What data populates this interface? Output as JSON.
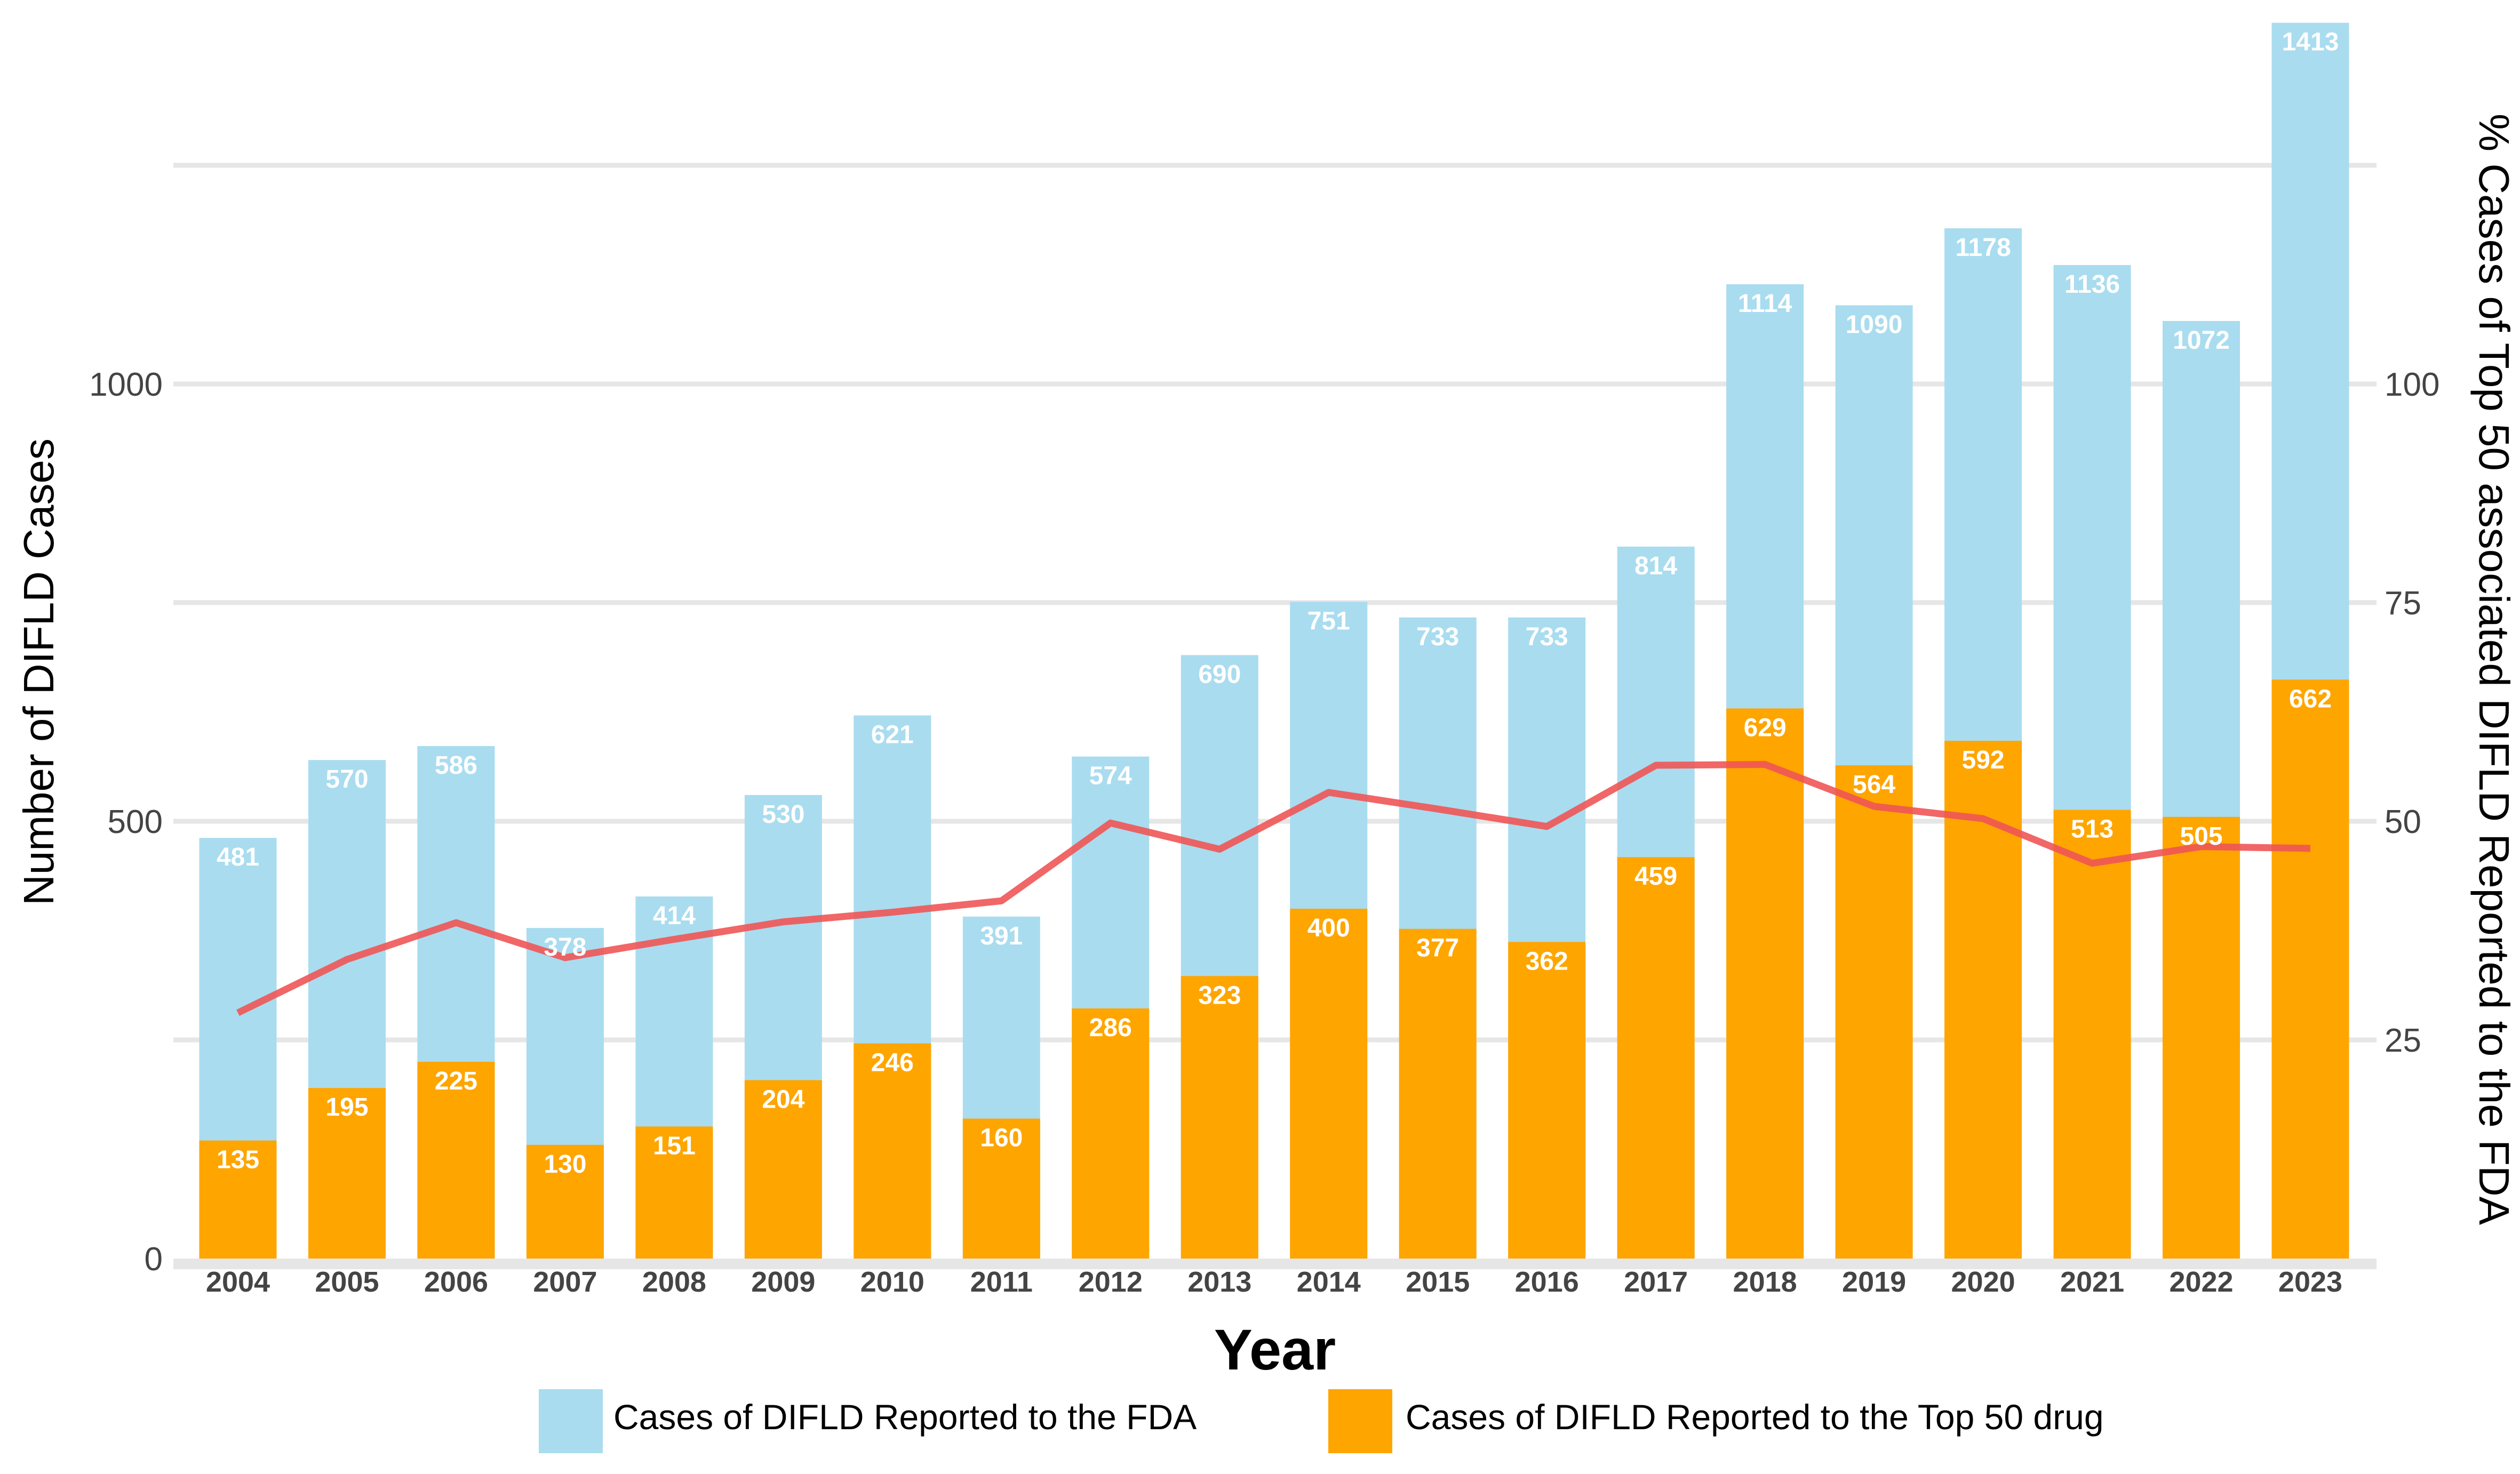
{
  "chart_data": {
    "type": "bar",
    "stacking": "overlay",
    "categories": [
      "2004",
      "2005",
      "2006",
      "2007",
      "2008",
      "2009",
      "2010",
      "2011",
      "2012",
      "2013",
      "2014",
      "2015",
      "2016",
      "2017",
      "2018",
      "2019",
      "2020",
      "2021",
      "2022",
      "2023"
    ],
    "series": [
      {
        "name": "Cases of DIFLD Reported to the FDA",
        "type": "bar",
        "axis": "left",
        "color": "#a9dcef",
        "values": [
          481,
          570,
          586,
          378,
          414,
          530,
          621,
          391,
          574,
          690,
          751,
          733,
          733,
          814,
          1114,
          1090,
          1178,
          1136,
          1072,
          1413
        ]
      },
      {
        "name": "Cases of DIFLD Reported to the Top 50 drug",
        "type": "bar",
        "axis": "left",
        "color": "#ffa500",
        "values": [
          135,
          195,
          225,
          130,
          151,
          204,
          246,
          160,
          286,
          323,
          400,
          377,
          362,
          459,
          629,
          564,
          592,
          513,
          505,
          662
        ]
      },
      {
        "type": "line",
        "axis": "right",
        "color": "#f05555",
        "values": [
          28.1,
          34.2,
          38.4,
          34.4,
          36.5,
          38.5,
          39.6,
          40.9,
          49.8,
          46.8,
          53.3,
          51.4,
          49.4,
          56.4,
          56.5,
          51.7,
          50.3,
          45.2,
          47.1,
          46.9
        ]
      }
    ],
    "xlabel": "Year",
    "ylabel": "Number of DIFLD Cases",
    "y2label": "% Cases of Top 50 associated DIFLD Reported to the FDA",
    "yticks": [
      "0",
      "500",
      "1000"
    ],
    "y2ticks": [
      "25",
      "50",
      "75",
      "100"
    ],
    "ylim": [
      0,
      1420
    ],
    "y2lim": [
      0,
      142
    ],
    "grid": true,
    "legend_position": "bottom"
  }
}
